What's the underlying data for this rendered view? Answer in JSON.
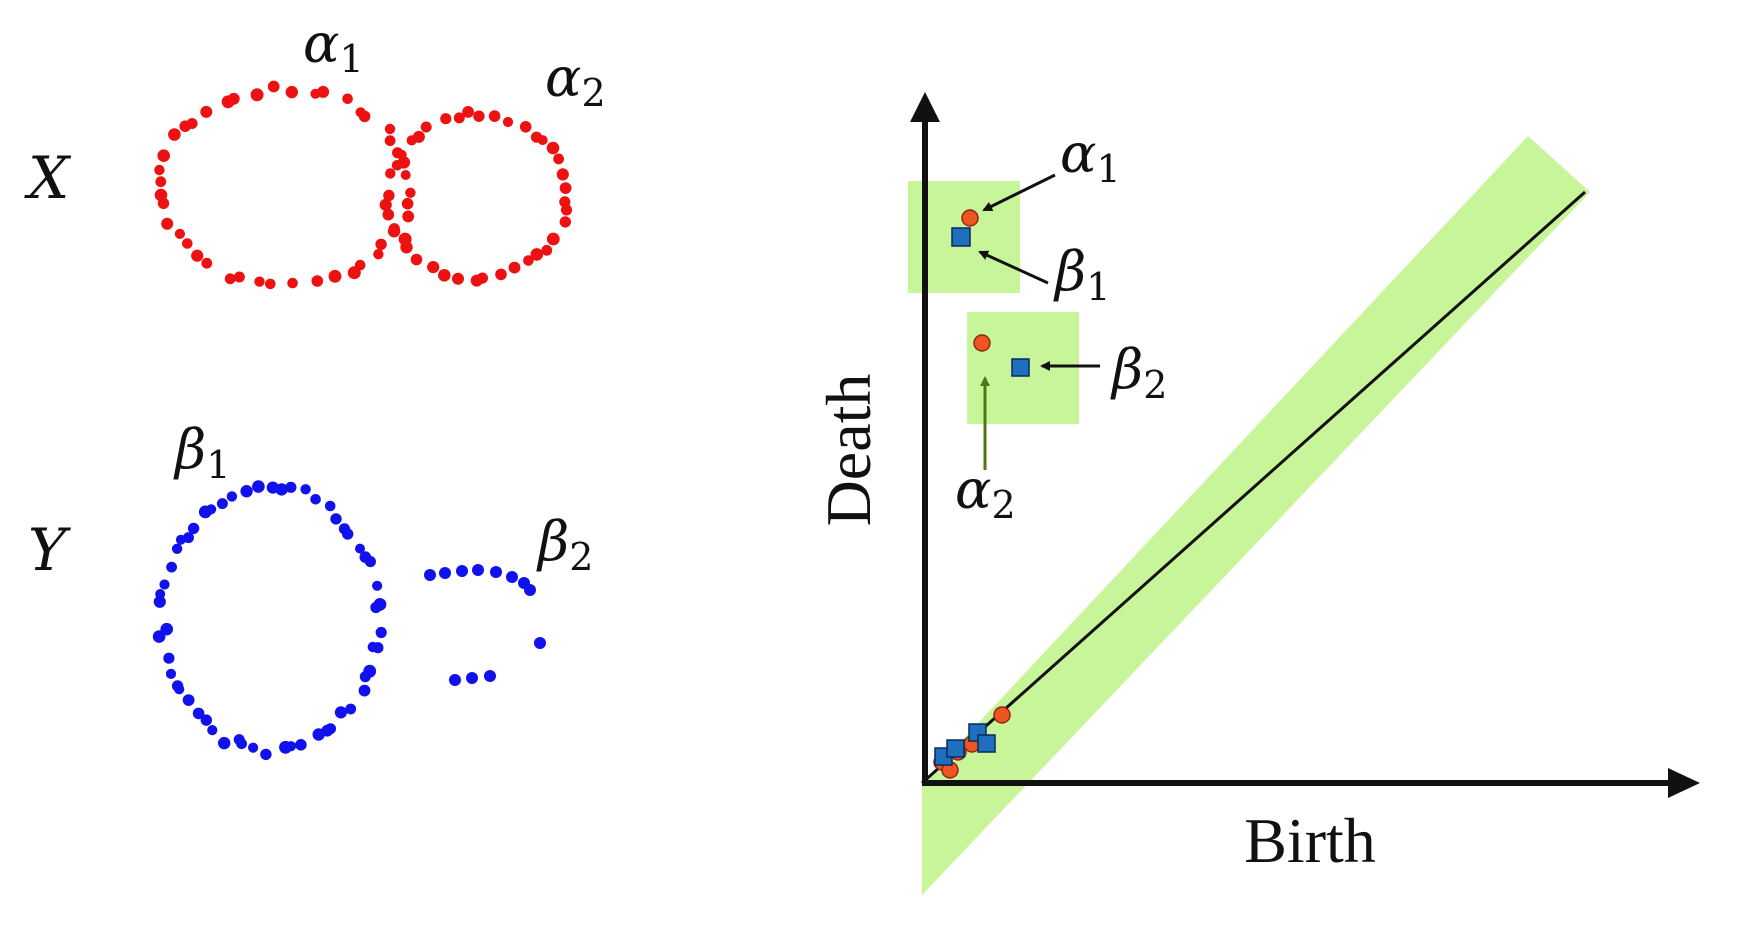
{
  "left_panel": {
    "X": {
      "label": "X",
      "color": "#ee1111",
      "cycles": [
        {
          "symbol": "α",
          "subscript": "1"
        },
        {
          "symbol": "α",
          "subscript": "2"
        }
      ]
    },
    "Y": {
      "label": "Y",
      "color": "#1111ee",
      "cycles": [
        {
          "symbol": "β",
          "subscript": "1"
        },
        {
          "symbol": "β",
          "subscript": "2"
        }
      ]
    }
  },
  "diagram": {
    "xlabel": "Birth",
    "ylabel": "Death",
    "band_color": "#c8f59a",
    "x_marker_color": "#ee5522",
    "y_marker_color": "#1f6fc0",
    "annotations": [
      {
        "symbol": "α",
        "subscript": "1"
      },
      {
        "symbol": "β",
        "subscript": "1"
      },
      {
        "symbol": "β",
        "subscript": "2"
      },
      {
        "symbol": "α",
        "subscript": "2"
      }
    ]
  }
}
